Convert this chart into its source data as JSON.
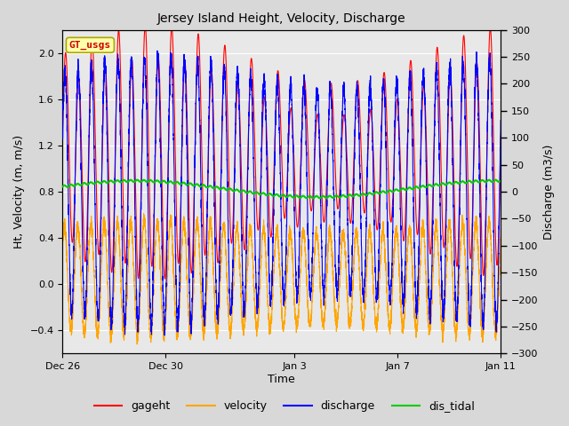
{
  "title": "Jersey Island Height, Velocity, Discharge",
  "xlabel": "Time",
  "ylabel_left": "Ht, Velocity (m, m/s)",
  "ylabel_right": "Discharge (m3/s)",
  "ylim_left": [
    -0.6,
    2.2
  ],
  "ylim_right": [
    -300,
    300
  ],
  "xlim": [
    0,
    17
  ],
  "xtick_labels": [
    "Dec 26",
    "Dec 30",
    "Jan 3",
    "Jan 7",
    "Jan 11"
  ],
  "xtick_positions": [
    0,
    4,
    9,
    13,
    17
  ],
  "colors": {
    "gageht": "#FF0000",
    "velocity": "#FFA500",
    "discharge": "#0000FF",
    "dis_tidal": "#00CC00"
  },
  "gt_usgs_box_color": "#FFFFAA",
  "gt_usgs_border_color": "#AAAA00",
  "gt_usgs_text_color": "#CC0000",
  "fig_bg_color": "#D8D8D8",
  "plot_bg_color": "#E8E8E8",
  "semi_diurnal_period": 0.515,
  "num_points": 5000
}
